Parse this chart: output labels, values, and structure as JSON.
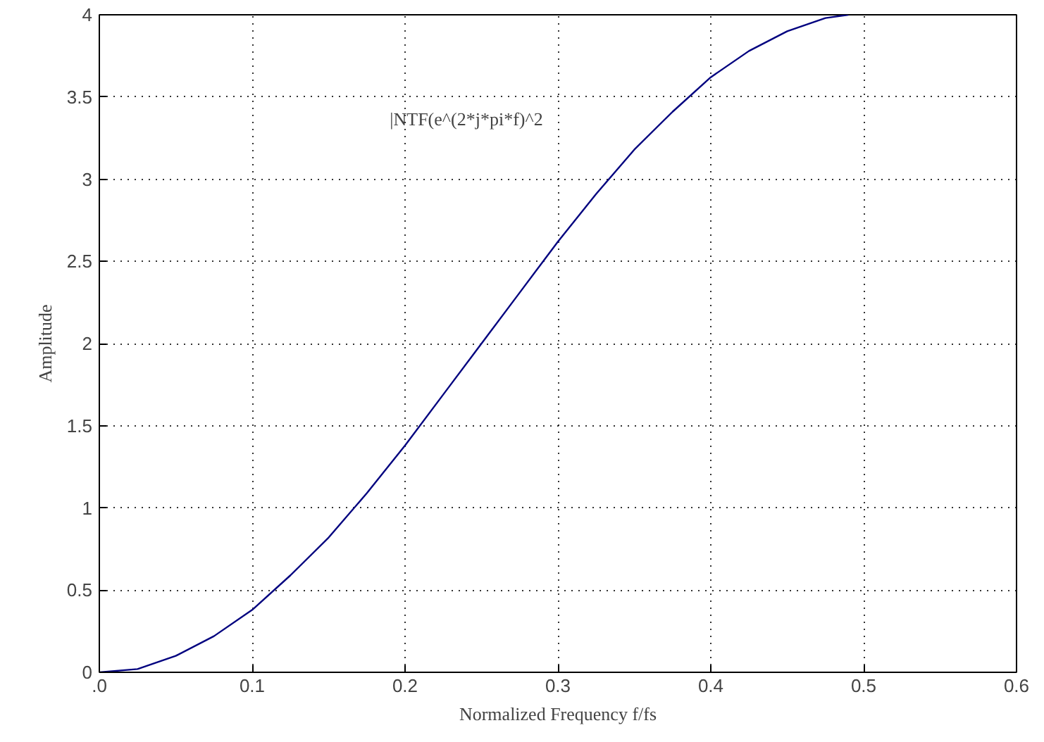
{
  "chart_data": {
    "type": "line",
    "xlabel": "Normalized Frequency f/fs",
    "ylabel": "Amplitude",
    "annotations": [
      "|NTF(e^(2*j*pi*f)^2"
    ],
    "x": [
      0,
      0.025,
      0.05,
      0.075,
      0.1,
      0.125,
      0.15,
      0.175,
      0.2,
      0.225,
      0.25,
      0.275,
      0.3,
      0.325,
      0.35,
      0.375,
      0.4,
      0.425,
      0.45,
      0.475,
      0.49
    ],
    "series": [
      {
        "color": "#00007f",
        "values": [
          0,
          0.02,
          0.1,
          0.22,
          0.38,
          0.59,
          0.82,
          1.09,
          1.38,
          1.69,
          2.0,
          2.31,
          2.62,
          2.91,
          3.18,
          3.41,
          3.62,
          3.78,
          3.9,
          3.98,
          4.0
        ]
      }
    ],
    "xlim": [
      0,
      0.6
    ],
    "ylim": [
      0,
      4
    ],
    "xticks": [
      {
        "value": 0,
        "label": ".0"
      },
      0.1,
      0.2,
      0.3,
      0.4,
      0.5,
      0.6
    ],
    "yticks": [
      0,
      0.5,
      1,
      1.5,
      2,
      2.5,
      3,
      3.5,
      4
    ],
    "grid": true,
    "line_style": "solid"
  }
}
